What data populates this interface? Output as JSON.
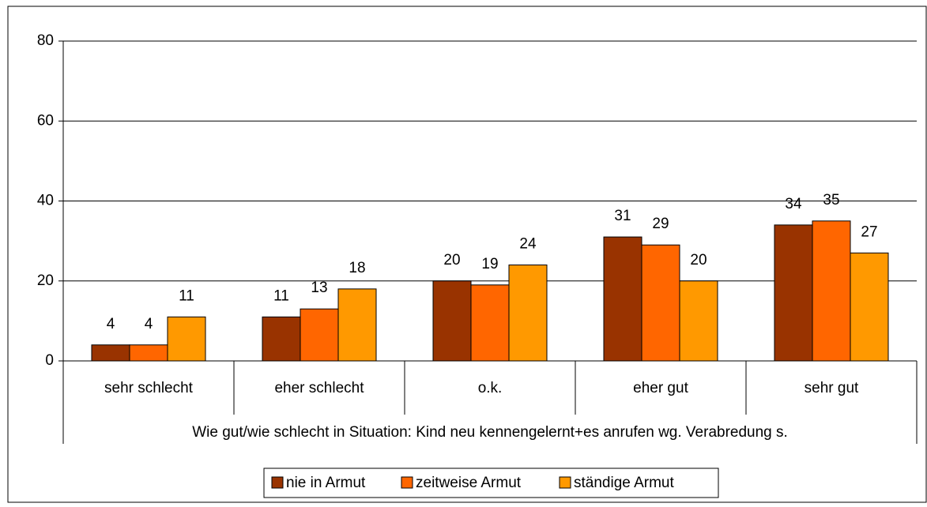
{
  "chart_data": {
    "type": "bar",
    "categories": [
      "sehr schlecht",
      "eher schlecht",
      "o.k.",
      "eher gut",
      "sehr gut"
    ],
    "series": [
      {
        "name": "nie in Armut",
        "color": "#993300",
        "values": [
          4,
          11,
          20,
          31,
          34
        ]
      },
      {
        "name": "zeitweise Armut",
        "color": "#ff6600",
        "values": [
          4,
          13,
          19,
          29,
          35
        ]
      },
      {
        "name": "ständige Armut",
        "color": "#ff9900",
        "values": [
          11,
          18,
          24,
          20,
          27
        ]
      }
    ],
    "xlabel": "Wie gut/wie schlecht in Situation: Kind neu kennengelernt+es anrufen wg. Verabredung s.",
    "ylim": [
      0,
      80
    ],
    "yticks": [
      0,
      20,
      40,
      60,
      80
    ],
    "grid": true,
    "legend": "bottom"
  }
}
